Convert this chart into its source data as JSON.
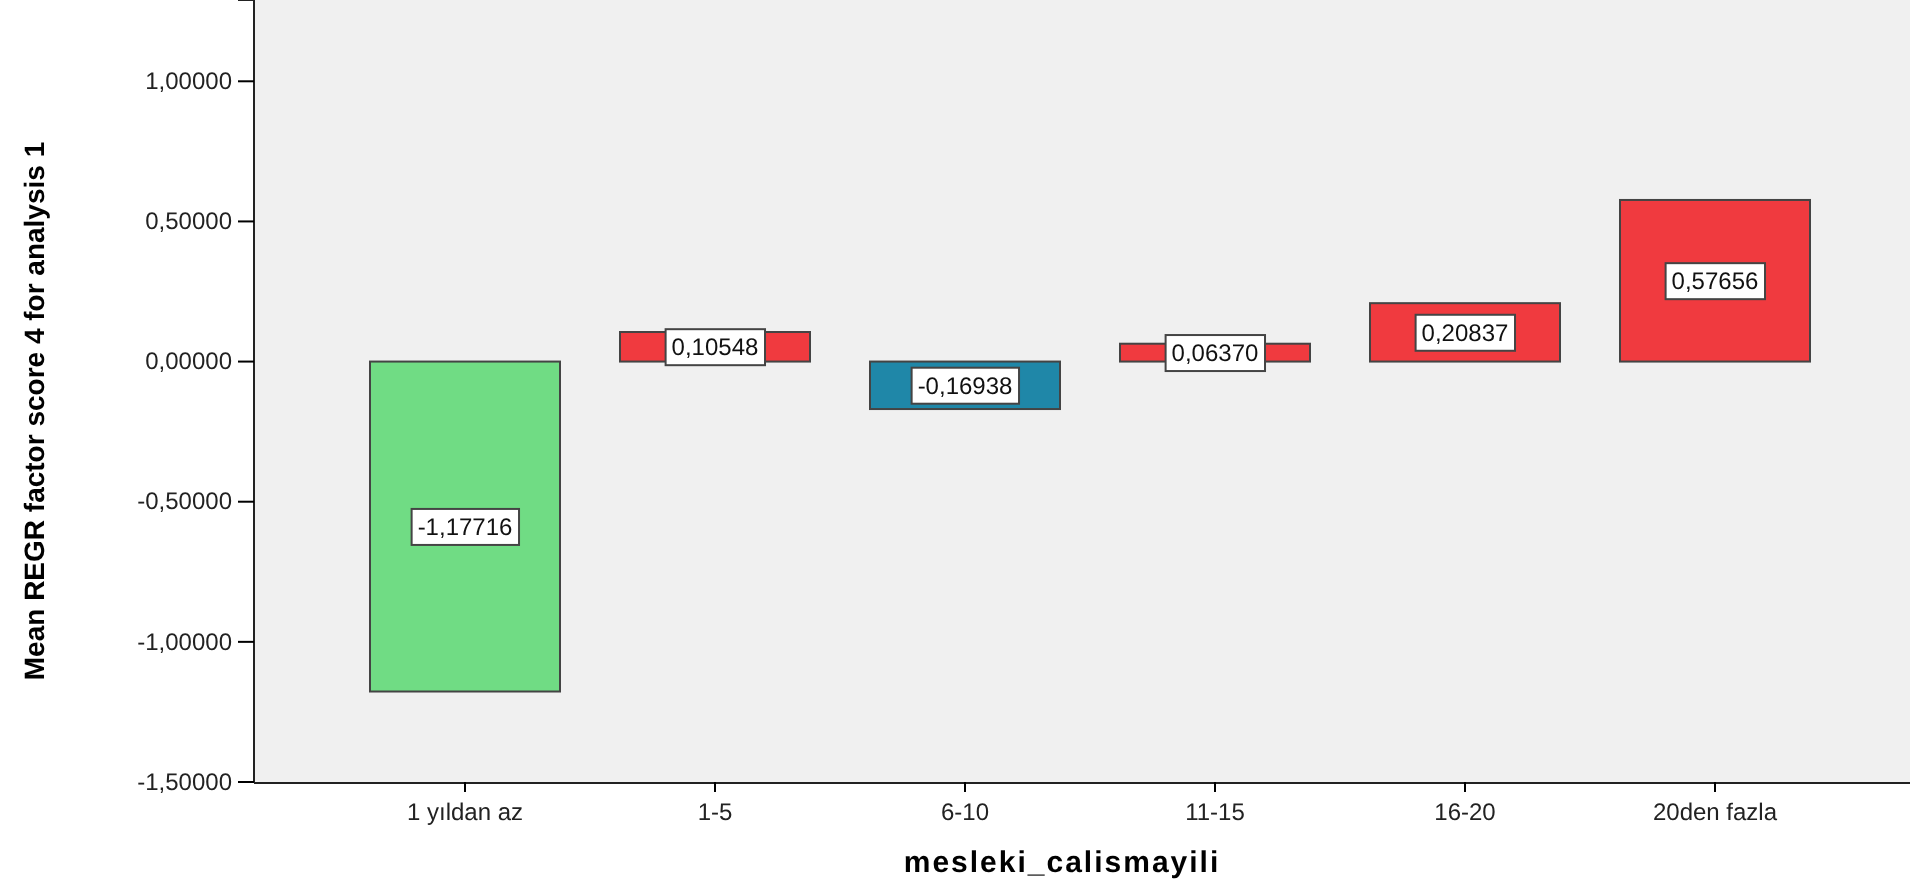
{
  "chart_data": {
    "type": "bar",
    "xlabel": "mesleki_calismayili",
    "ylabel": "Mean REGR factor score   4 for analysis 1",
    "categories": [
      "1 yıldan az",
      "1-5",
      "6-10",
      "11-15",
      "16-20",
      "20den fazla"
    ],
    "values": [
      -1.17716,
      0.10548,
      -0.16938,
      0.0637,
      0.20837,
      0.57656
    ],
    "value_labels": [
      "-1,17716",
      "0,10548",
      "-0,16938",
      "0,06370",
      "0,20837",
      "0,57656"
    ],
    "colors": [
      "#70dc84",
      "#f03a3f",
      "#1f87a8",
      "#f03a3f",
      "#f03a3f",
      "#f03a3f"
    ],
    "ylim": [
      -1.5,
      1.29
    ],
    "yticks": [
      {
        "value": -1.5,
        "label": "-1,50000"
      },
      {
        "value": -1,
        "label": "-1,00000"
      },
      {
        "value": -0.5,
        "label": "-0,50000"
      },
      {
        "value": 0,
        "label": "0,00000"
      },
      {
        "value": 0.5,
        "label": "0,50000"
      },
      {
        "value": 1,
        "label": "1,00000"
      }
    ],
    "grid": false
  }
}
